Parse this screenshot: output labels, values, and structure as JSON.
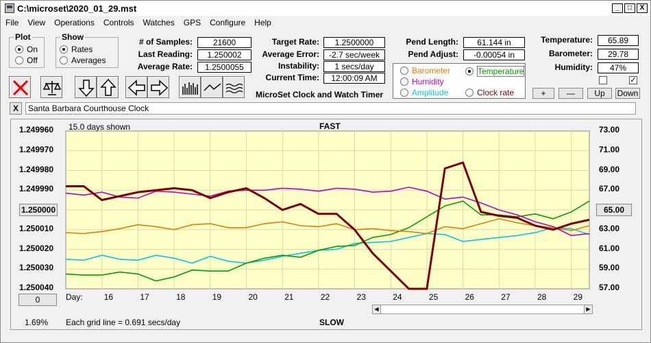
{
  "window": {
    "title": "C:\\microset\\2020_01_29.mst"
  },
  "menu": [
    "File",
    "View",
    "Operations",
    "Controls",
    "Watches",
    "GPS",
    "Configure",
    "Help"
  ],
  "plot_group": {
    "title": "Plot",
    "on": "On",
    "off": "Off",
    "selected": "On"
  },
  "show_group": {
    "title": "Show",
    "rates": "Rates",
    "averages": "Averages",
    "selected": "Rates"
  },
  "stats": {
    "samples_label": "# of Samples:",
    "samples": "21600",
    "last_label": "Last Reading:",
    "last": "1.250002",
    "avg_label": "Average Rate:",
    "avg": "1.2500055",
    "target_label": "Target Rate:",
    "target": "1.2500000",
    "avgerr_label": "Average Error:",
    "avgerr": "-2.7 sec/week",
    "instab_label": "Instability:",
    "instab": "1 secs/day",
    "time_label": "Current Time:",
    "time": "12:00:09 AM",
    "pendlen_label": "Pend Length:",
    "pendlen": "61.144 in",
    "pendadj_label": "Pend Adjust:",
    "pendadj": "-0.00054 in",
    "temp_label": "Temperature:",
    "temp": "65.89",
    "baro_label": "Barometer:",
    "baro": "29.78",
    "hum_label": "Humidity:",
    "hum": "47%"
  },
  "app_caption": "MicroSet Clock and Watch Timer",
  "series_select": {
    "barometer": "Barometer",
    "temperature": "Temperature",
    "humidity": "Humidity",
    "amplitude": "Amplitude",
    "clockrate": "Clock rate",
    "selected": "Temperature",
    "colors": {
      "barometer": "#e87c00",
      "temperature": "#00a000",
      "humidity": "#c000c0",
      "amplitude": "#00c8e8",
      "clockrate": "#800000"
    }
  },
  "adjust_buttons": {
    "plus": "+",
    "minus": "—",
    "up": "Up",
    "down": "Down"
  },
  "checkboxes": [
    {
      "checked": false
    },
    {
      "checked": true
    }
  ],
  "watch": {
    "close": "X",
    "name": "Santa Barbara Courthouse Clock"
  },
  "plot": {
    "days_shown": "15.0 days shown",
    "top_label": "FAST",
    "bottom_label": "SLOW",
    "left_ticks": [
      "1.249960",
      "1.249970",
      "1.249980",
      "1.249990",
      "1.250000",
      "1.250010",
      "1.250020",
      "1.250030",
      "1.250040"
    ],
    "right_ticks": [
      "73.00",
      "71.00",
      "69.00",
      "67.00",
      "65.00",
      "63.00",
      "61.00",
      "59.00",
      "57.00"
    ],
    "left_box_index": 4,
    "right_box_index": 4,
    "day_prefix": "Day:",
    "days": [
      "16",
      "17",
      "18",
      "19",
      "20",
      "21",
      "22",
      "23",
      "24",
      "25",
      "26",
      "27",
      "28",
      "29"
    ],
    "left_counter": "0",
    "percent": "1.69%",
    "grid_note": "Each grid line = 0.691 secs/day",
    "plot_bg": "#ffffc8"
  },
  "chart_data": {
    "type": "line",
    "x": [
      15.0,
      15.5,
      16.0,
      16.5,
      17.0,
      17.5,
      18.0,
      18.5,
      19.0,
      19.5,
      20.0,
      20.5,
      21.0,
      21.5,
      22.0,
      22.5,
      23.0,
      23.5,
      24.0,
      24.5,
      25.0,
      25.5,
      26.0,
      26.5,
      27.0,
      27.5,
      28.0,
      28.5,
      29.0,
      29.5
    ],
    "left_axis": {
      "ylim": [
        1.24996,
        1.25004
      ],
      "inverted": true
    },
    "right_axis": {
      "ylim": [
        57,
        73
      ]
    },
    "series": [
      {
        "key": "clockrate",
        "axis": "left",
        "values": [
          1.249988,
          1.249988,
          1.249995,
          1.249993,
          1.249991,
          1.24999,
          1.249989,
          1.24999,
          1.249994,
          1.249991,
          1.249989,
          1.249994,
          1.25,
          1.249997,
          1.250002,
          1.250002,
          1.25001,
          1.250022,
          1.250031,
          1.25004,
          1.25004,
          1.249979,
          1.249976,
          1.250001,
          1.250003,
          1.250004,
          1.250008,
          1.25001,
          1.250007,
          1.250005
        ]
      },
      {
        "key": "humidity",
        "axis": "right",
        "values": [
          66.7,
          66.5,
          66.8,
          66.3,
          66.2,
          66.9,
          66.8,
          66.6,
          66.4,
          66.9,
          67.0,
          67.0,
          67.2,
          67.1,
          66.9,
          67.2,
          67.1,
          66.8,
          66.9,
          67.3,
          66.9,
          66.1,
          66.3,
          65.7,
          65.0,
          64.5,
          63.8,
          63.3,
          62.4,
          62.6
        ]
      },
      {
        "key": "barometer",
        "axis": "right",
        "values": [
          62.7,
          62.6,
          62.8,
          63.1,
          63.5,
          63.3,
          63.0,
          63.5,
          63.6,
          63.2,
          63.2,
          63.6,
          63.8,
          63.4,
          63.3,
          63.6,
          63.0,
          63.1,
          62.9,
          62.8,
          62.6,
          63.3,
          63.1,
          63.6,
          64.1,
          63.7,
          63.4,
          63.2,
          62.9,
          63.4
        ]
      },
      {
        "key": "temperature",
        "axis": "right",
        "values": [
          58.5,
          58.4,
          58.4,
          58.7,
          58.5,
          57.8,
          58.2,
          58.9,
          58.8,
          58.8,
          59.6,
          60.1,
          60.4,
          60.2,
          60.9,
          61.3,
          61.4,
          62.2,
          62.5,
          63.2,
          64.3,
          65.4,
          65.9,
          64.5,
          64.5,
          64.3,
          64.6,
          64.1,
          64.8,
          65.9
        ]
      },
      {
        "key": "amplitude",
        "axis": "right",
        "values": [
          60.0,
          59.9,
          60.4,
          60.0,
          59.9,
          60.4,
          60.1,
          59.6,
          60.3,
          59.8,
          59.6,
          59.9,
          60.3,
          60.6,
          60.9,
          61.0,
          61.6,
          61.7,
          61.8,
          62.2,
          62.6,
          62.5,
          61.8,
          62.0,
          62.2,
          62.4,
          62.7,
          63.2,
          63.1,
          62.5
        ]
      }
    ]
  }
}
